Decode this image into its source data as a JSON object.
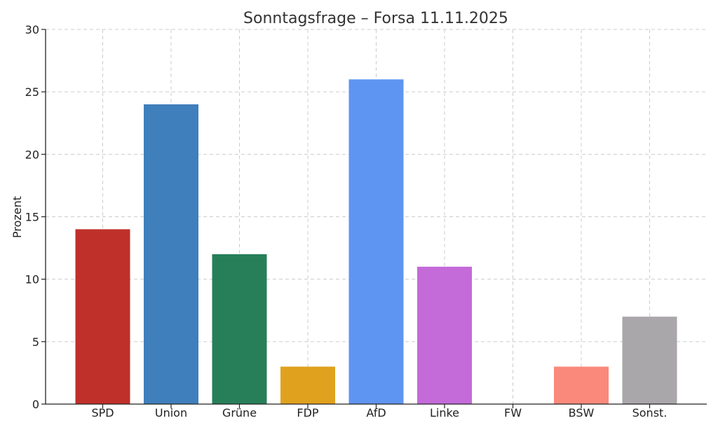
{
  "chart_data": {
    "type": "bar",
    "title": "Sonntagsfrage – Forsa 11.11.2025",
    "xlabel": "",
    "ylabel": "Prozent",
    "ylim": [
      0,
      30
    ],
    "yticks": [
      0,
      5,
      10,
      15,
      20,
      25,
      30
    ],
    "grid": true,
    "categories": [
      "SPD",
      "Union",
      "Grüne",
      "FDP",
      "AfD",
      "Linke",
      "FW",
      "BSW",
      "Sonst."
    ],
    "values": [
      14,
      24,
      12,
      3,
      26,
      11,
      0,
      3,
      7
    ],
    "colors": [
      "#c0302a",
      "#3f7fbb",
      "#277f5a",
      "#e0a21e",
      "#5f95f2",
      "#c46ad9",
      "#ffffff",
      "#fa897b",
      "#a9a7aa"
    ]
  }
}
